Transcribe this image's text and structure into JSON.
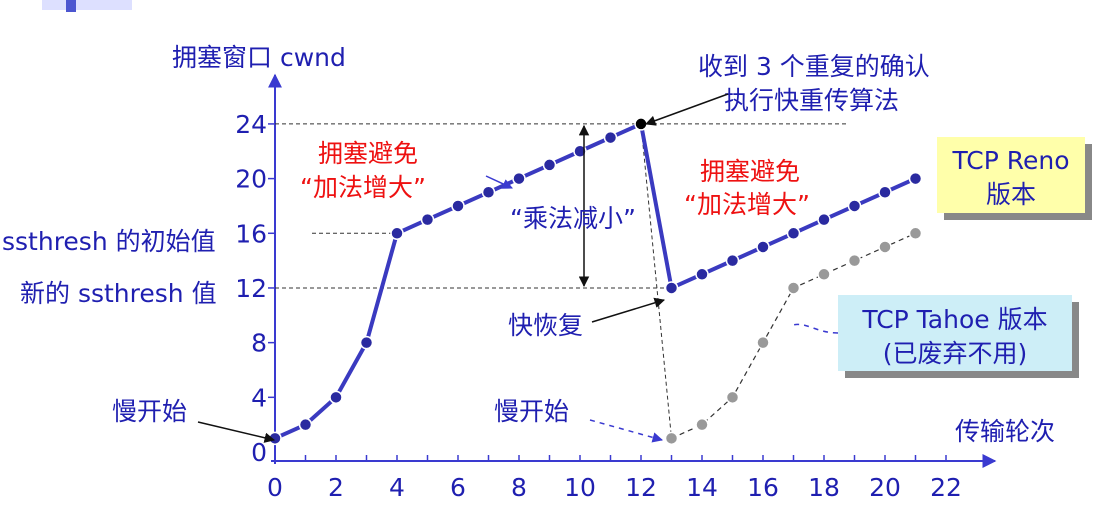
{
  "chart_data": {
    "type": "line",
    "ylabel": "拥塞窗口 cwnd",
    "xlabel": "传输轮次",
    "xlim": [
      0,
      23
    ],
    "ylim": [
      0,
      27
    ],
    "xticks": [
      0,
      2,
      4,
      6,
      8,
      10,
      12,
      14,
      16,
      18,
      20,
      22
    ],
    "yticks": [
      0,
      4,
      8,
      12,
      16,
      20,
      24
    ],
    "y_ref_labels": {
      "16": "ssthresh 的初始值",
      "12": "新的 ssthresh 值"
    },
    "series": [
      {
        "name": "TCP Reno 版本",
        "x": [
          0,
          1,
          2,
          3,
          4,
          5,
          6,
          7,
          8,
          9,
          10,
          11,
          12,
          13,
          14,
          15,
          16,
          17,
          18,
          19,
          20,
          21
        ],
        "y": [
          1,
          2,
          4,
          8,
          16,
          17,
          18,
          19,
          20,
          21,
          22,
          23,
          24,
          12,
          13,
          14,
          15,
          16,
          17,
          18,
          19,
          20
        ]
      },
      {
        "name": "TCP Tahoe 版本 (已废弃不用)",
        "x": [
          13,
          14,
          15,
          16,
          17,
          18,
          19,
          20,
          21
        ],
        "y": [
          1,
          2,
          4,
          8,
          12,
          13,
          14,
          15,
          16
        ]
      }
    ],
    "annotations": {
      "slow_start_left": "慢开始",
      "slow_start_right": "慢开始",
      "cong_avoid_title": "拥塞避免",
      "cong_avoid_sub": "“加法增大”",
      "mult_decrease": "“乘法减小”",
      "fast_recovery": "快恢复",
      "triple_ack_line1": "收到 3 个重复的确认",
      "triple_ack_line2": "执行快重传算法"
    },
    "legend": {
      "reno_line1": "TCP Reno",
      "reno_line2": "版本",
      "tahoe_line1": "TCP Tahoe 版本",
      "tahoe_line2": "(已废弃不用)"
    }
  },
  "colors": {
    "axis": "#3a3ad0",
    "reno": "#3a3ac0",
    "tahoe": "#333333",
    "text": "#1f1fb0",
    "red": "#ee1111",
    "reno_box": "#ffffaa",
    "tahoe_box": "#cdeef7"
  }
}
